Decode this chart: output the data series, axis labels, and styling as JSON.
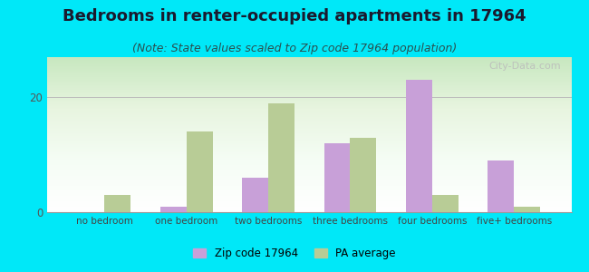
{
  "title": "Bedrooms in renter-occupied apartments in 17964",
  "subtitle": "(Note: State values scaled to Zip code 17964 population)",
  "categories": [
    "no bedroom",
    "one bedroom",
    "two bedrooms",
    "three bedrooms",
    "four bedrooms",
    "five+ bedrooms"
  ],
  "zip_values": [
    0,
    1,
    6,
    12,
    23,
    9
  ],
  "pa_values": [
    3,
    14,
    19,
    13,
    3,
    1
  ],
  "zip_color": "#c8a0d8",
  "pa_color": "#b8cc96",
  "background_outer": "#00e8f8",
  "title_fontsize": 13,
  "subtitle_fontsize": 9,
  "ylabel_values": [
    0,
    20
  ],
  "ylim": [
    0,
    27
  ],
  "legend_zip_label": "Zip code 17964",
  "legend_pa_label": "PA average",
  "watermark": "City-Data.com"
}
